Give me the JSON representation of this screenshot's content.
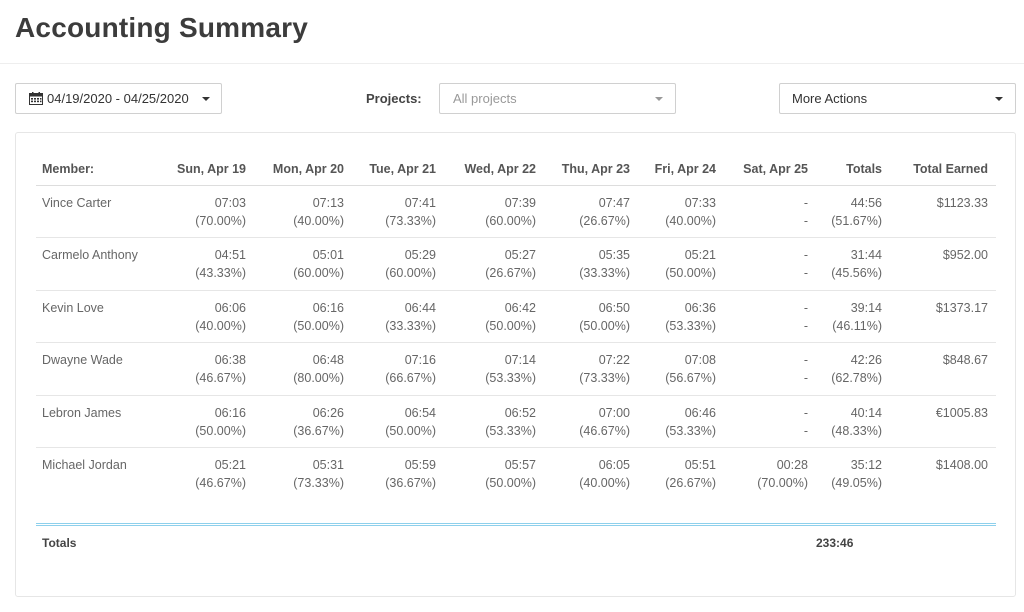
{
  "header": {
    "title": "Accounting Summary"
  },
  "toolbar": {
    "date_range": "04/19/2020 - 04/25/2020",
    "projects_label": "Projects:",
    "projects_placeholder": "All projects",
    "more_actions": "More Actions"
  },
  "table": {
    "headers": [
      "Member:",
      "Sun, Apr 19",
      "Mon, Apr 20",
      "Tue, Apr 21",
      "Wed, Apr 22",
      "Thu, Apr 23",
      "Fri, Apr 24",
      "Sat, Apr 25",
      "Totals",
      "Total Earned"
    ],
    "rows": [
      {
        "member": "Vince Carter",
        "days": [
          [
            "07:03",
            "(70.00%)"
          ],
          [
            "07:13",
            "(40.00%)"
          ],
          [
            "07:41",
            "(73.33%)"
          ],
          [
            "07:39",
            "(60.00%)"
          ],
          [
            "07:47",
            "(26.67%)"
          ],
          [
            "07:33",
            "(40.00%)"
          ],
          [
            "-",
            "-"
          ]
        ],
        "total": [
          "44:56",
          "(51.67%)"
        ],
        "earned": "$1123.33"
      },
      {
        "member": "Carmelo Anthony",
        "days": [
          [
            "04:51",
            "(43.33%)"
          ],
          [
            "05:01",
            "(60.00%)"
          ],
          [
            "05:29",
            "(60.00%)"
          ],
          [
            "05:27",
            "(26.67%)"
          ],
          [
            "05:35",
            "(33.33%)"
          ],
          [
            "05:21",
            "(50.00%)"
          ],
          [
            "-",
            "-"
          ]
        ],
        "total": [
          "31:44",
          "(45.56%)"
        ],
        "earned": "$952.00"
      },
      {
        "member": "Kevin Love",
        "days": [
          [
            "06:06",
            "(40.00%)"
          ],
          [
            "06:16",
            "(50.00%)"
          ],
          [
            "06:44",
            "(33.33%)"
          ],
          [
            "06:42",
            "(50.00%)"
          ],
          [
            "06:50",
            "(50.00%)"
          ],
          [
            "06:36",
            "(53.33%)"
          ],
          [
            "-",
            "-"
          ]
        ],
        "total": [
          "39:14",
          "(46.11%)"
        ],
        "earned": "$1373.17"
      },
      {
        "member": "Dwayne Wade",
        "days": [
          [
            "06:38",
            "(46.67%)"
          ],
          [
            "06:48",
            "(80.00%)"
          ],
          [
            "07:16",
            "(66.67%)"
          ],
          [
            "07:14",
            "(53.33%)"
          ],
          [
            "07:22",
            "(73.33%)"
          ],
          [
            "07:08",
            "(56.67%)"
          ],
          [
            "-",
            "-"
          ]
        ],
        "total": [
          "42:26",
          "(62.78%)"
        ],
        "earned": "$848.67"
      },
      {
        "member": "Lebron James",
        "days": [
          [
            "06:16",
            "(50.00%)"
          ],
          [
            "06:26",
            "(36.67%)"
          ],
          [
            "06:54",
            "(50.00%)"
          ],
          [
            "06:52",
            "(53.33%)"
          ],
          [
            "07:00",
            "(46.67%)"
          ],
          [
            "06:46",
            "(53.33%)"
          ],
          [
            "-",
            "-"
          ]
        ],
        "total": [
          "40:14",
          "(48.33%)"
        ],
        "earned": "€1005.83"
      },
      {
        "member": "Michael Jordan",
        "days": [
          [
            "05:21",
            "(46.67%)"
          ],
          [
            "05:31",
            "(73.33%)"
          ],
          [
            "05:59",
            "(36.67%)"
          ],
          [
            "05:57",
            "(50.00%)"
          ],
          [
            "06:05",
            "(40.00%)"
          ],
          [
            "05:51",
            "(26.67%)"
          ],
          [
            "00:28",
            "(70.00%)"
          ]
        ],
        "total": [
          "35:12",
          "(49.05%)"
        ],
        "earned": "$1408.00"
      }
    ],
    "totals_label": "Totals",
    "totals_value": "233:46"
  },
  "icons": {
    "date_picker": "calendar-icon",
    "dropdown": "caret-down-icon"
  }
}
